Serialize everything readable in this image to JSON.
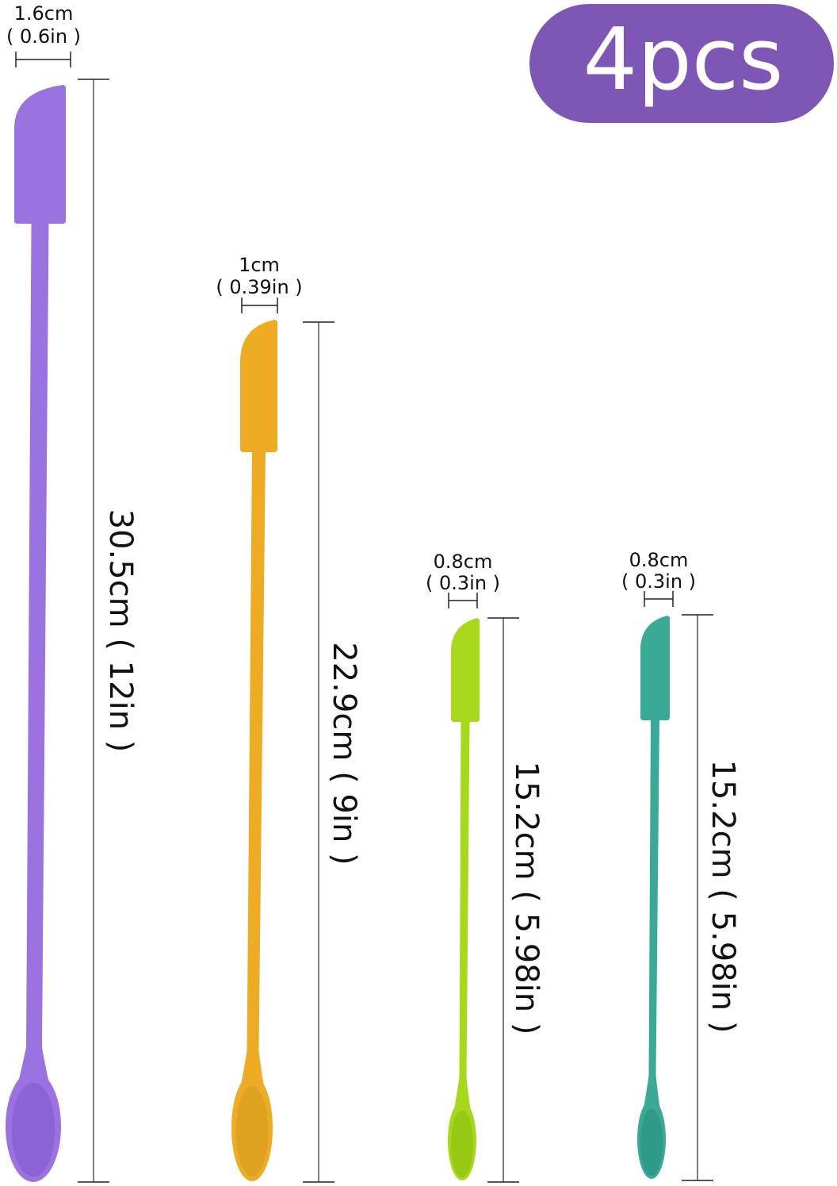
{
  "badge": {
    "label": "4pcs",
    "color": "#7d56b6",
    "text_color": "#ffffff"
  },
  "spatulas": [
    {
      "color": "#9b73e0",
      "shade": "#8c63d4",
      "width_cm": "1.6cm",
      "width_in": "( 0.6in )",
      "length": "30.5cm ( 12in )"
    },
    {
      "color": "#eeac24",
      "shade": "#dca220",
      "width_cm": "1cm",
      "width_in": "( 0.39in )",
      "length": "22.9cm ( 9in )"
    },
    {
      "color": "#a7d81c",
      "shade": "#97c814",
      "width_cm": "0.8cm",
      "width_in": "( 0.3in )",
      "length": "15.2cm ( 5.98in )"
    },
    {
      "color": "#3aa996",
      "shade": "#309a88",
      "width_cm": "0.8cm",
      "width_in": "( 0.3in )",
      "length": "15.2cm ( 5.98in )"
    }
  ]
}
